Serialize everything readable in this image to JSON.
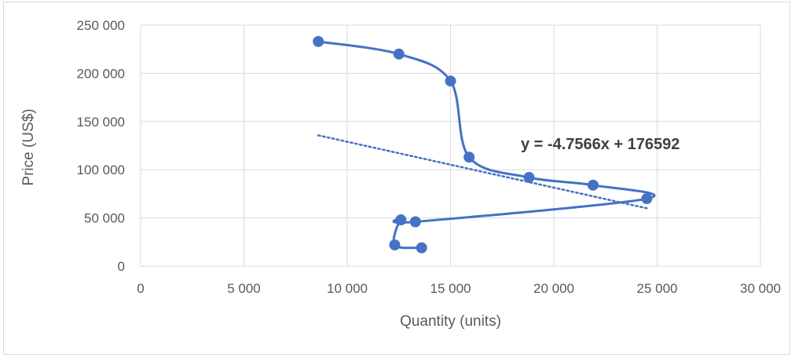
{
  "chart_data": {
    "type": "scatter",
    "title": "",
    "xlabel": "Quantity (units)",
    "ylabel": "Price (US$)",
    "xlim": [
      0,
      30000
    ],
    "ylim": [
      0,
      250000
    ],
    "x_ticks": [
      0,
      5000,
      10000,
      15000,
      20000,
      25000,
      30000
    ],
    "x_tick_labels": [
      "0",
      "5 000",
      "10 000",
      "15 000",
      "20 000",
      "25 000",
      "30 000"
    ],
    "y_ticks": [
      0,
      50000,
      100000,
      150000,
      200000,
      250000
    ],
    "y_tick_labels": [
      "0",
      "50 000",
      "100 000",
      "150 000",
      "200 000",
      "250 000"
    ],
    "grid": true,
    "legend": "none",
    "series": [
      {
        "style": "smoothed line with markers",
        "color": "#4472c4",
        "points": [
          {
            "x": 8600,
            "y": 233000
          },
          {
            "x": 12500,
            "y": 220000
          },
          {
            "x": 15000,
            "y": 192000
          },
          {
            "x": 15900,
            "y": 113000
          },
          {
            "x": 18800,
            "y": 92000
          },
          {
            "x": 21900,
            "y": 84000
          },
          {
            "x": 24500,
            "y": 70000
          },
          {
            "x": 13300,
            "y": 46000
          },
          {
            "x": 12600,
            "y": 48000
          },
          {
            "x": 12300,
            "y": 22000
          },
          {
            "x": 13600,
            "y": 19000
          }
        ]
      }
    ],
    "trendline": {
      "type": "linear",
      "style": "dotted",
      "color": "#4472c4",
      "slope": -4.7566,
      "intercept": 176592,
      "x_range": [
        8600,
        24500
      ],
      "label": "y = -4.7566x + 176592"
    }
  }
}
